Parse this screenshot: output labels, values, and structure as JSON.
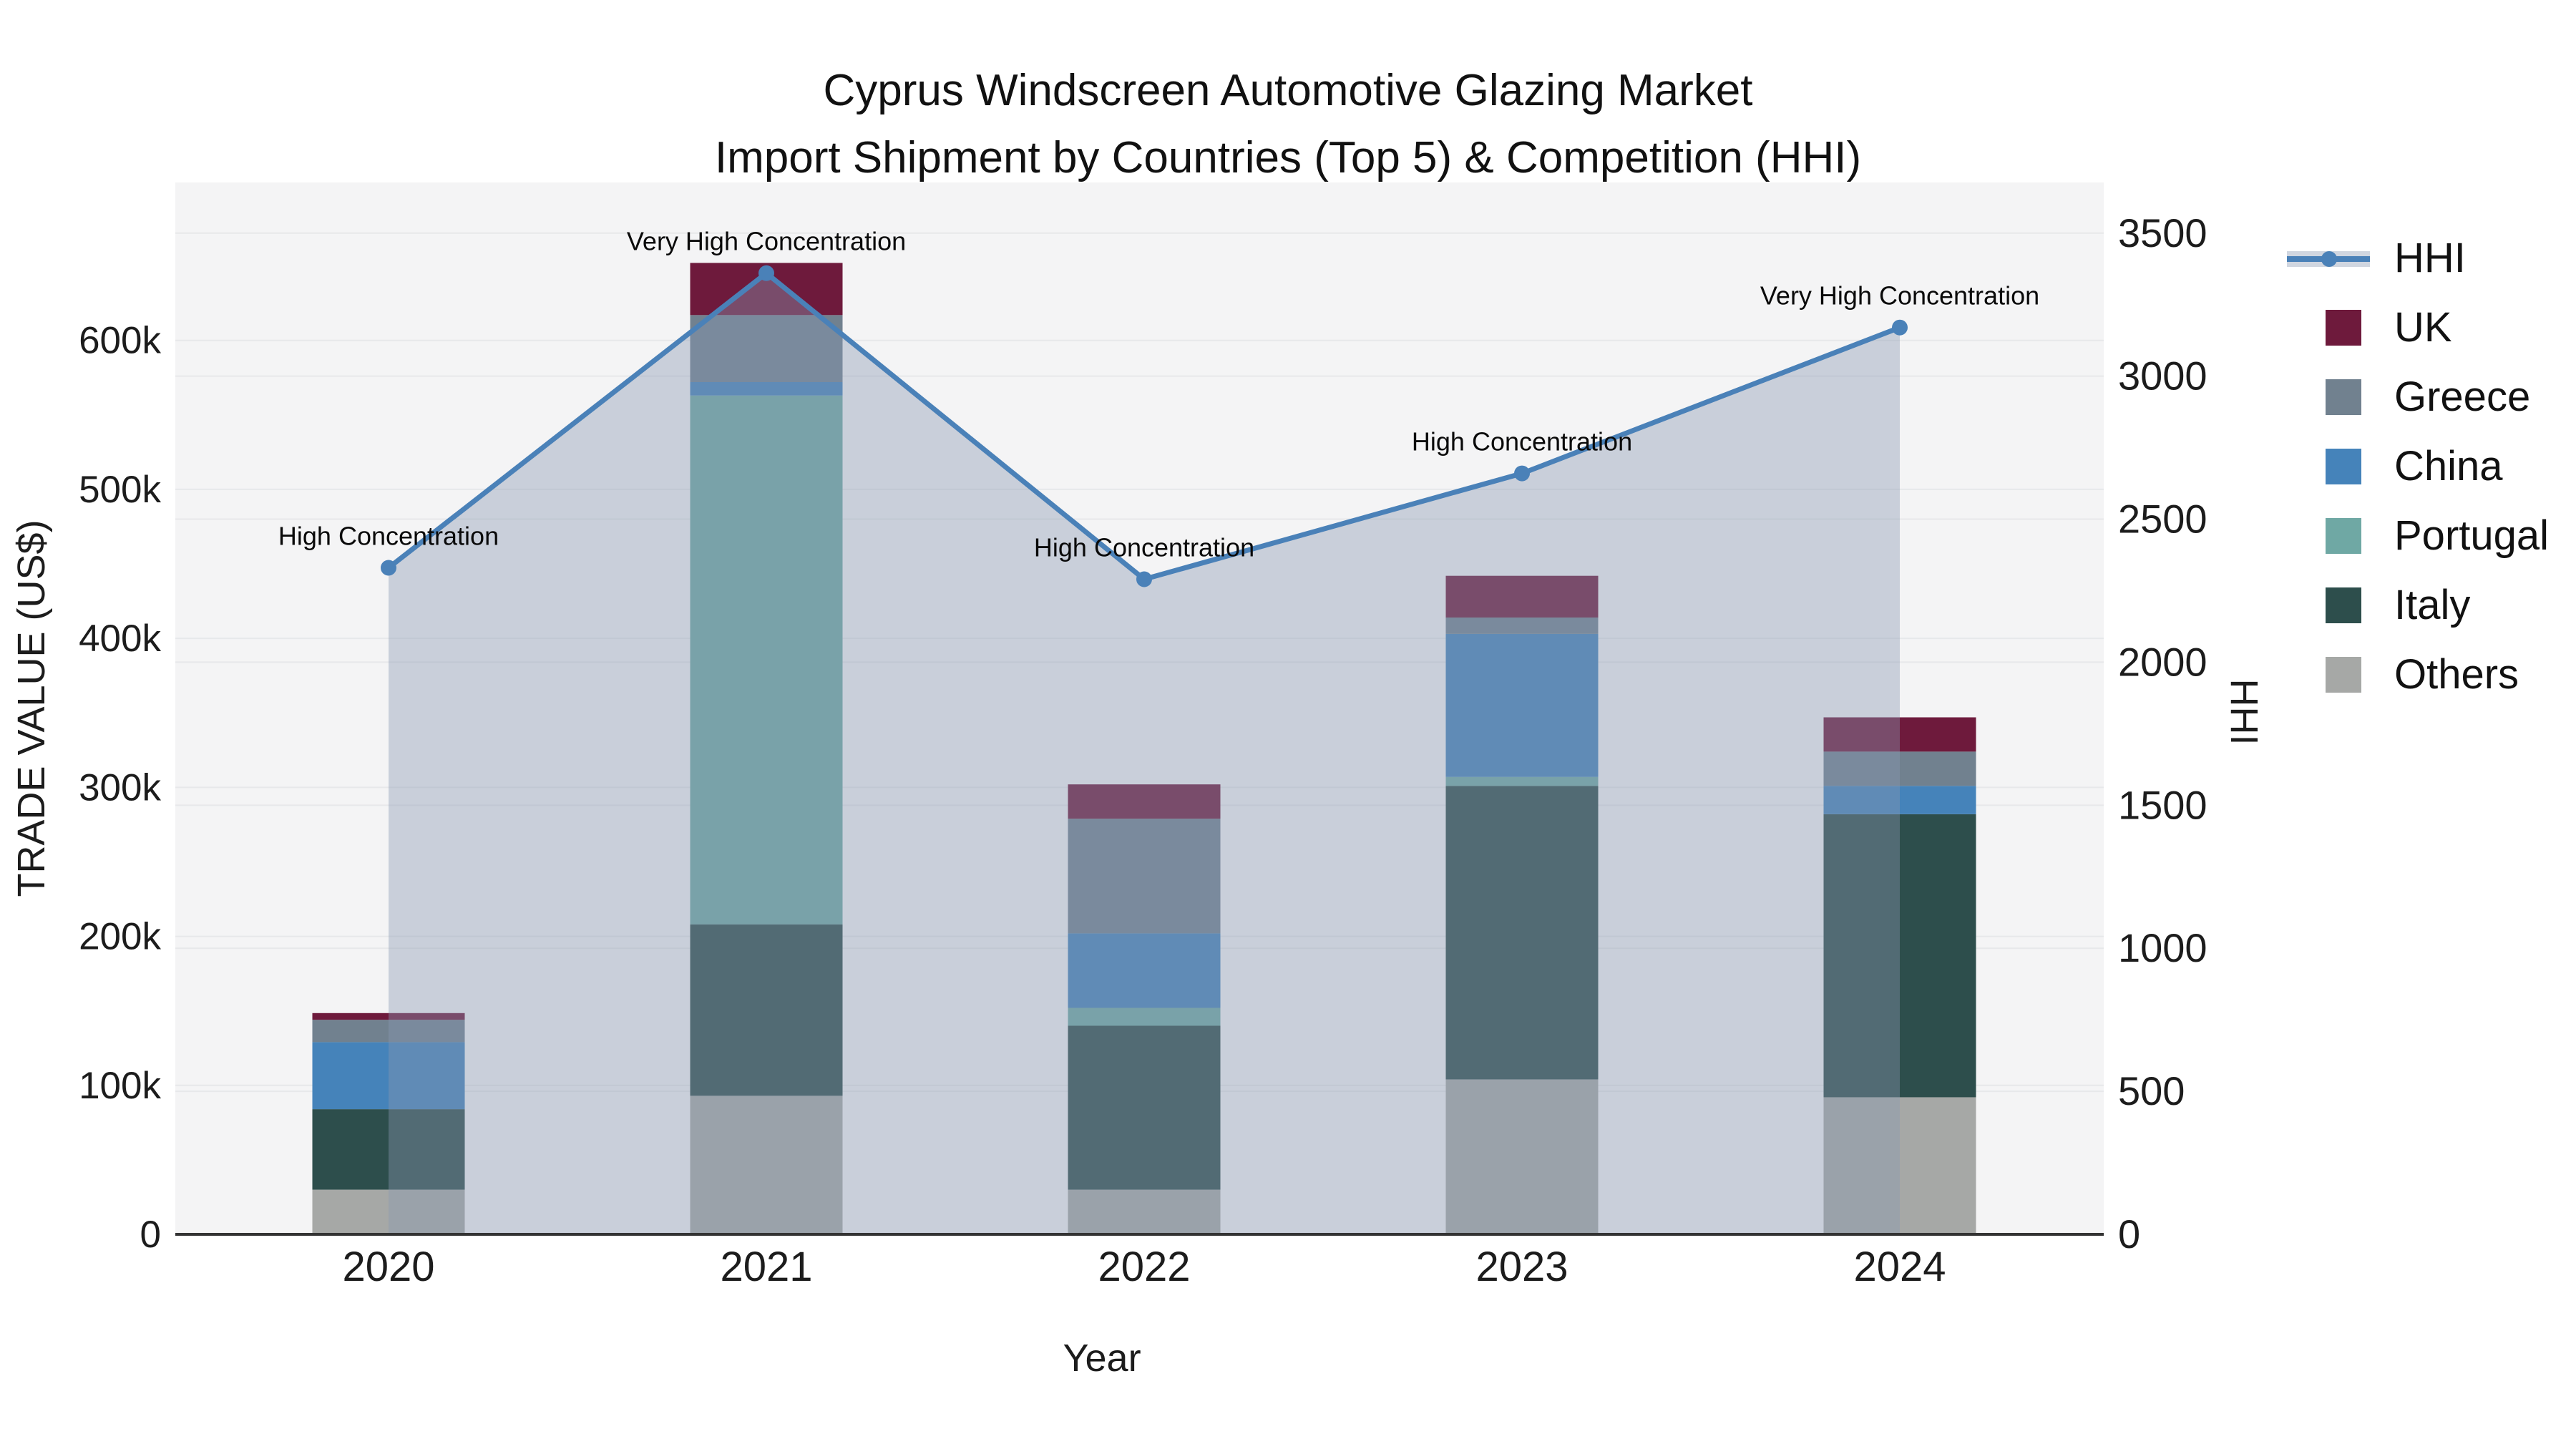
{
  "title": {
    "line1": "Cyprus Windscreen Automotive Glazing Market",
    "line2": "Import Shipment by Countries (Top 5) & Competition (HHI)"
  },
  "axes": {
    "x": {
      "title": "Year"
    },
    "y_left": {
      "title": "TRADE VALUE (US$)",
      "tick_labels": [
        "0",
        "100k",
        "200k",
        "300k",
        "400k",
        "500k",
        "600k"
      ],
      "tick_values": [
        0,
        100000,
        200000,
        300000,
        400000,
        500000,
        600000
      ],
      "max": 706000
    },
    "y_right": {
      "title": "HHI",
      "tick_labels": [
        "0",
        "500",
        "1000",
        "1500",
        "2000",
        "2500",
        "3000",
        "3500"
      ],
      "tick_values": [
        0,
        500,
        1000,
        1500,
        2000,
        2500,
        3000,
        3500
      ],
      "max": 3677
    }
  },
  "legend": {
    "items": [
      {
        "label": "HHI",
        "swatch": "hhi-line"
      },
      {
        "label": "UK",
        "swatch": "uk"
      },
      {
        "label": "Greece",
        "swatch": "greece"
      },
      {
        "label": "China",
        "swatch": "china"
      },
      {
        "label": "Portugal",
        "swatch": "portugal"
      },
      {
        "label": "Italy",
        "swatch": "italy"
      },
      {
        "label": "Others",
        "swatch": "others"
      }
    ]
  },
  "colors": {
    "uk": "#6e1a3c",
    "greece": "#71818f",
    "china": "#4583ba",
    "portugal": "#6fa8a4",
    "italy": "#2d4e4c",
    "others": "#a6a8a6",
    "hhi_line": "#4a81b8",
    "hhi_fill": "rgba(138,153,178,0.40)",
    "plot_bg": "#f4f4f5",
    "grid": "#e7e8ea",
    "axis_line": "#333333",
    "text": "#1c1c1c"
  },
  "chart_data": {
    "type": "bar+line",
    "categories": [
      "2020",
      "2021",
      "2022",
      "2023",
      "2024"
    ],
    "bar_value_unit": "US$",
    "stack_order_bottom_to_top": [
      "Others",
      "Italy",
      "Portugal",
      "China",
      "Greece",
      "UK"
    ],
    "series": [
      {
        "name": "Others",
        "values": [
          30000,
          93000,
          30000,
          104000,
          92000
        ]
      },
      {
        "name": "Italy",
        "values": [
          54000,
          115000,
          110000,
          197000,
          190000
        ]
      },
      {
        "name": "Portugal",
        "values": [
          0,
          355000,
          12000,
          6000,
          0
        ]
      },
      {
        "name": "China",
        "values": [
          45000,
          9000,
          50000,
          96000,
          19000
        ]
      },
      {
        "name": "Greece",
        "values": [
          15000,
          45000,
          77000,
          11000,
          23000
        ]
      },
      {
        "name": "UK",
        "values": [
          4500,
          35000,
          23000,
          28000,
          23000
        ]
      }
    ],
    "bar_totals": [
      148500,
      652000,
      302000,
      442000,
      347000
    ],
    "hhi_series": {
      "name": "HHI",
      "values": [
        2330,
        3360,
        2290,
        2660,
        3170
      ]
    },
    "annotations": [
      "High Concentration",
      "Very High Concentration",
      "High Concentration",
      "High Concentration",
      "Very High Concentration"
    ],
    "xlabel": "Year",
    "ylabel_left": "TRADE VALUE (US$)",
    "ylabel_right": "HHI",
    "ylim_left": [
      0,
      706000
    ],
    "ylim_right": [
      0,
      3677
    ],
    "grid": true,
    "legend_position": "right"
  }
}
